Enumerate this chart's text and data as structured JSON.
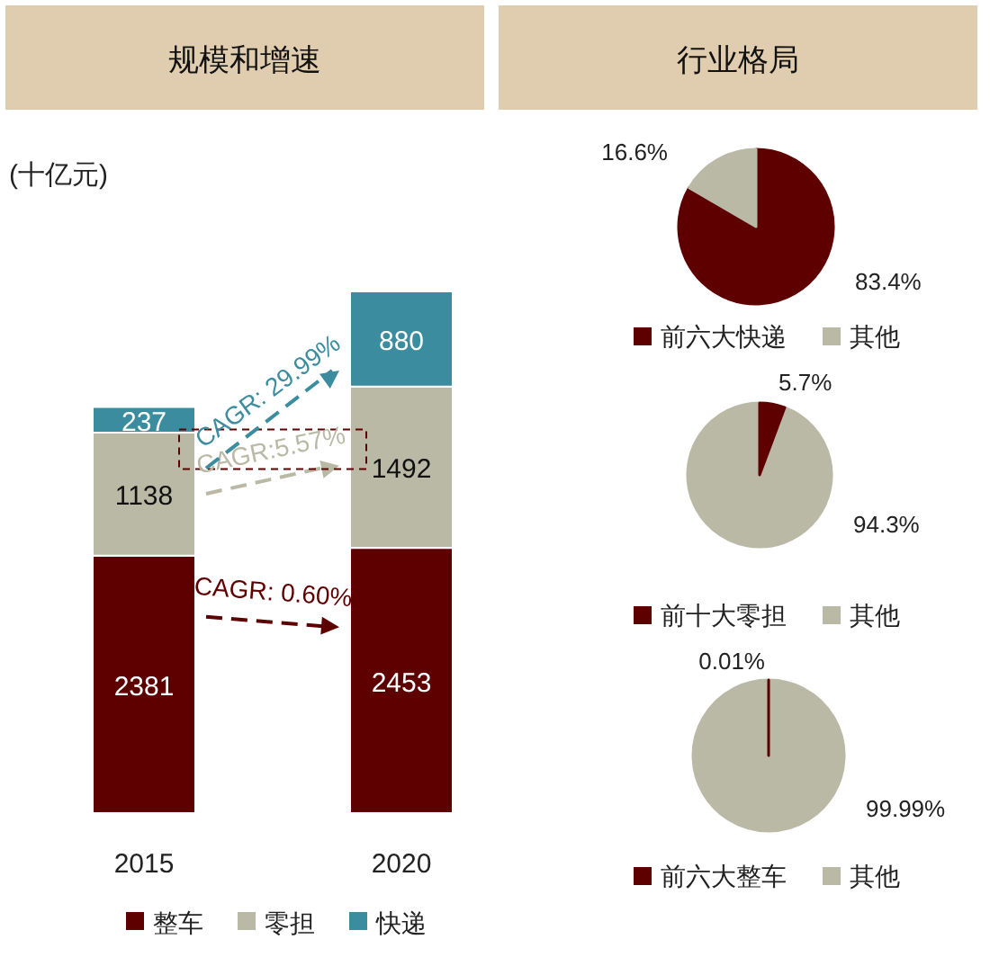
{
  "chart_data": [
    {
      "type": "bar",
      "title": "规模和增速",
      "ylabel": "(十亿元)",
      "categories": [
        "2015",
        "2020"
      ],
      "stacked": true,
      "data_labels": true,
      "legend": "bottom",
      "series": [
        {
          "name": "整车",
          "color": "#5e0000",
          "values": [
            2381,
            2453
          ]
        },
        {
          "name": "零担",
          "color": "#bab9a6",
          "values": [
            1138,
            1492
          ]
        },
        {
          "name": "快递",
          "color": "#3b8c9e",
          "values": [
            237,
            880
          ]
        }
      ],
      "annotations": [
        "CAGR: 0.60%",
        "CAGR:5.57%",
        "CAGR: 29.99%"
      ]
    },
    {
      "type": "pie",
      "title": "行业格局",
      "categories": [
        "前六大快递",
        "其他"
      ],
      "values": [
        83.4,
        16.6
      ],
      "value_labels": [
        "83.4%",
        "16.6%"
      ],
      "colors": [
        "#5e0000",
        "#bab9a6"
      ],
      "legend": "bottom"
    },
    {
      "type": "pie",
      "categories": [
        "前十大零担",
        "其他"
      ],
      "values": [
        5.7,
        94.3
      ],
      "value_labels": [
        "5.7%",
        "94.3%"
      ],
      "colors": [
        "#5e0000",
        "#bab9a6"
      ],
      "legend": "bottom"
    },
    {
      "type": "pie",
      "categories": [
        "前六大整车",
        "其他"
      ],
      "values": [
        0.01,
        99.99
      ],
      "value_labels": [
        "0.01%",
        "99.99%"
      ],
      "colors": [
        "#5e0000",
        "#bab9a6"
      ],
      "legend": "bottom"
    }
  ]
}
